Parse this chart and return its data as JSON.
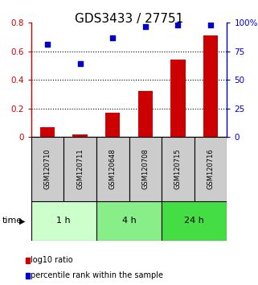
{
  "title": "GDS3433 / 27751",
  "samples": [
    "GSM120710",
    "GSM120711",
    "GSM120648",
    "GSM120708",
    "GSM120715",
    "GSM120716"
  ],
  "log10_ratio": [
    0.07,
    0.015,
    0.17,
    0.32,
    0.54,
    0.71
  ],
  "percentile_rank": [
    81,
    64,
    87,
    97,
    98,
    98
  ],
  "bar_color": "#cc0000",
  "scatter_color": "#0000cc",
  "left_ylim": [
    0,
    0.8
  ],
  "right_ylim": [
    0,
    100
  ],
  "left_yticks": [
    0,
    0.2,
    0.4,
    0.6,
    0.8
  ],
  "right_yticks": [
    0,
    25,
    50,
    75,
    100
  ],
  "right_yticklabels": [
    "0",
    "25",
    "50",
    "75",
    "100%"
  ],
  "time_groups": [
    {
      "label": "1 h",
      "cols": [
        0,
        1
      ],
      "color": "#ccffcc"
    },
    {
      "label": "4 h",
      "cols": [
        2,
        3
      ],
      "color": "#88ee88"
    },
    {
      "label": "24 h",
      "cols": [
        4,
        5
      ],
      "color": "#44dd44"
    }
  ],
  "legend_entries": [
    {
      "label": "log10 ratio",
      "color": "#cc0000"
    },
    {
      "label": "percentile rank within the sample",
      "color": "#0000cc"
    }
  ],
  "background_color": "#ffffff",
  "sample_box_color": "#cccccc",
  "bar_width": 0.45,
  "title_fontsize": 11,
  "tick_fontsize": 7.5,
  "sample_fontsize": 6,
  "time_fontsize": 8,
  "legend_fontsize": 7
}
